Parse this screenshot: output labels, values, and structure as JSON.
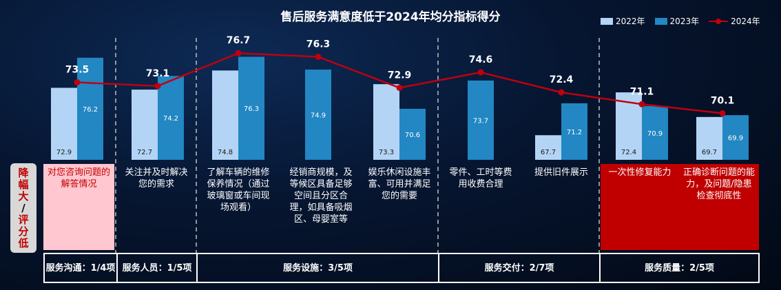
{
  "title": "售后服务满意度低于2024年均分指标得分",
  "legend": {
    "s2022": "2022年",
    "s2023": "2023年",
    "s2024": "2024年"
  },
  "colors": {
    "s2022": "#b3d4f5",
    "s2023": "#2287c3",
    "s2024": "#c0000f",
    "highlight_pink": "#ffc7d0",
    "highlight_red": "#c00000"
  },
  "side_tag": {
    "chars": [
      "降",
      "幅",
      "大",
      "/",
      "评",
      "分",
      "低"
    ]
  },
  "descriptions": [
    "对您咨询问题的解答情况",
    "关注并及时解决您的需求",
    "了解车辆的维修保养情况（通过玻璃窗或车间现场观看）",
    "经销商规模，及等候区具备足够空间且分区合理，如具备吸烟区、母婴室等",
    "娱乐休闲设施丰富、可用并满足您的需要",
    "零件、工时等费用收费合理",
    "提供旧件展示",
    "一次性修复能力",
    "正确诊断问题的能力，及问题/隐患检查彻底性"
  ],
  "categories": [
    "服务沟通：1/4项",
    "服务人员：1/5项",
    "服务设施：3/5项",
    "服务交付：2/7项",
    "服务质量：2/5项"
  ],
  "chart_data": {
    "type": "bar",
    "title": "售后服务满意度低于2024年均分指标得分",
    "categories": [
      "对您咨询问题的解答情况",
      "关注并及时解决您的需求",
      "了解车辆的维修保养情况（通过玻璃窗或车间现场观看）",
      "经销商规模，及等候区具备足够空间且分区合理，如具备吸烟区、母婴室等",
      "娱乐休闲设施丰富、可用并满足您的需要",
      "零件、工时等费用收费合理",
      "提供旧件展示",
      "一次性修复能力",
      "正确诊断问题的能力，及问题/隐患检查彻底性"
    ],
    "series": [
      {
        "name": "2022年",
        "type": "bar",
        "values": [
          72.9,
          72.7,
          74.8,
          null,
          73.3,
          null,
          67.7,
          72.4,
          69.7
        ]
      },
      {
        "name": "2023年",
        "type": "bar",
        "values": [
          76.2,
          74.2,
          76.3,
          74.9,
          70.6,
          73.7,
          71.2,
          70.9,
          69.9
        ]
      },
      {
        "name": "2024年",
        "type": "line",
        "values": [
          73.5,
          73.1,
          76.7,
          76.3,
          72.9,
          74.6,
          72.4,
          71.1,
          70.1
        ]
      }
    ],
    "ylim": [
      65,
      78
    ],
    "legend_position": "top-right",
    "grid": false
  }
}
